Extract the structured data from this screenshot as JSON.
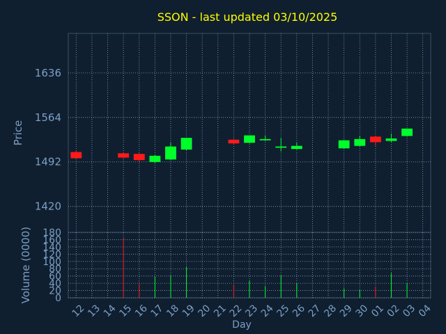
{
  "chart_data": [
    {
      "type": "candlestick",
      "title": "SSON - last updated 03/10/2025",
      "ylabel": "Price",
      "ylim": [
        1378,
        1700
      ],
      "yticks": [
        1420,
        1492,
        1564,
        1636
      ],
      "grid": true,
      "colors": {
        "up": "#00ff2a",
        "down": "#ff1a1a"
      },
      "candles": [
        {
          "day": "12",
          "open": 1508,
          "high": 1511,
          "low": 1497,
          "close": 1498
        },
        {
          "day": "15",
          "open": 1506,
          "high": 1507,
          "low": 1498,
          "close": 1499
        },
        {
          "day": "16",
          "open": 1505,
          "high": 1506,
          "low": 1492,
          "close": 1495
        },
        {
          "day": "17",
          "open": 1492,
          "high": 1504,
          "low": 1491,
          "close": 1502
        },
        {
          "day": "18",
          "open": 1496,
          "high": 1523,
          "low": 1495,
          "close": 1517
        },
        {
          "day": "19",
          "open": 1512,
          "high": 1531,
          "low": 1511,
          "close": 1531
        },
        {
          "day": "22",
          "open": 1528,
          "high": 1529,
          "low": 1520,
          "close": 1522
        },
        {
          "day": "23",
          "open": 1523,
          "high": 1535,
          "low": 1522,
          "close": 1535
        },
        {
          "day": "24",
          "open": 1527,
          "high": 1535,
          "low": 1526,
          "close": 1529
        },
        {
          "day": "25",
          "open": 1515,
          "high": 1531,
          "low": 1509,
          "close": 1517
        },
        {
          "day": "26",
          "open": 1513,
          "high": 1523,
          "low": 1512,
          "close": 1518
        },
        {
          "day": "29",
          "open": 1514,
          "high": 1528,
          "low": 1513,
          "close": 1527
        },
        {
          "day": "30",
          "open": 1518,
          "high": 1534,
          "low": 1517,
          "close": 1529
        },
        {
          "day": "01",
          "open": 1533,
          "high": 1534,
          "low": 1518,
          "close": 1524
        },
        {
          "day": "02",
          "open": 1526,
          "high": 1538,
          "low": 1524,
          "close": 1530
        },
        {
          "day": "03",
          "open": 1534,
          "high": 1546,
          "low": 1533,
          "close": 1546
        }
      ]
    },
    {
      "type": "bar",
      "xlabel": "Day",
      "ylabel": "Volume (0000)",
      "ylim": [
        0,
        180
      ],
      "yticks": [
        0,
        20,
        40,
        60,
        80,
        100,
        120,
        140,
        160,
        180
      ],
      "ytick_labels": [
        "0",
        "20",
        "40",
        "60",
        "80",
        "100",
        "120",
        "140",
        "160",
        "180"
      ],
      "categories": [
        "12",
        "13",
        "14",
        "15",
        "16",
        "17",
        "18",
        "19",
        "20",
        "21",
        "22",
        "23",
        "24",
        "25",
        "26",
        "27",
        "28",
        "29",
        "30",
        "01",
        "02",
        "03",
        "04"
      ],
      "values": [
        0,
        0,
        0,
        165,
        38,
        58,
        62,
        85,
        0,
        0,
        36,
        48,
        32,
        62,
        40,
        0,
        0,
        26,
        22,
        30,
        68,
        40,
        0
      ],
      "bar_colors": [
        "#00ff2a",
        "#00ff2a",
        "#00ff2a",
        "#ff1a1a",
        "#ff1a1a",
        "#00ff2a",
        "#00ff2a",
        "#00ff2a",
        "#00ff2a",
        "#00ff2a",
        "#ff1a1a",
        "#00ff2a",
        "#00ff2a",
        "#00ff2a",
        "#00ff2a",
        "#00ff2a",
        "#00ff2a",
        "#00ff2a",
        "#00ff2a",
        "#ff1a1a",
        "#00ff2a",
        "#00ff2a",
        "#00ff2a"
      ],
      "grid": true
    }
  ]
}
